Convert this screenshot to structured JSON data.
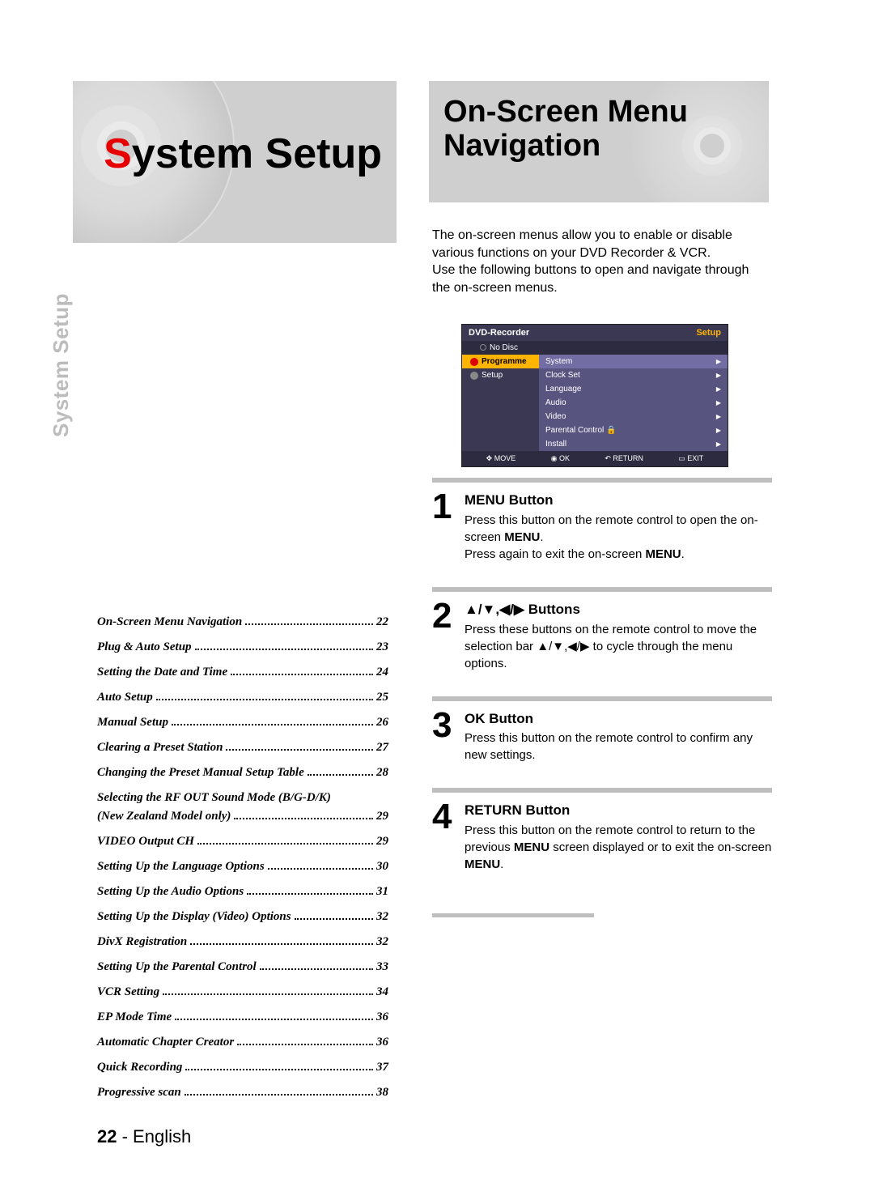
{
  "header": {
    "left_title_accent": "S",
    "left_title_rest": "ystem Setup",
    "right_title_line1": "On-Screen Menu",
    "right_title_line2": "Navigation"
  },
  "intro": {
    "p1": "The on-screen menus allow you to enable or disable various functions on your DVD Recorder & VCR.",
    "p2": "Use the following buttons to open and navigate through the on-screen menus."
  },
  "osd": {
    "device": "DVD-Recorder",
    "mode": "Setup",
    "status": "No Disc",
    "left_items": [
      "Programme",
      "Setup"
    ],
    "right_items": [
      "System",
      "Clock Set",
      "Language",
      "Audio",
      "Video",
      "Parental Control",
      "Install"
    ],
    "footer": [
      "MOVE",
      "OK",
      "RETURN",
      "EXIT"
    ]
  },
  "steps": [
    {
      "num": "1",
      "title": "MENU Button",
      "body_html": "Press this button on the remote control to open the on-screen <b>MENU</b>.<br>Press again to exit the on-screen <b>MENU</b>."
    },
    {
      "num": "2",
      "title": "▲/▼,◀/▶ Buttons",
      "body_html": "Press these buttons on the remote control to move the selection bar ▲/▼,◀/▶ to cycle through the menu options."
    },
    {
      "num": "3",
      "title": "OK Button",
      "body_html": "Press this button on the remote control to confirm any new settings."
    },
    {
      "num": "4",
      "title": "RETURN Button",
      "body_html": "Press this button on the remote control to return to the previous <b>MENU</b> screen displayed or to exit the on-screen <b>MENU</b>."
    }
  ],
  "side_label": {
    "accent": "S",
    "rest": "ystem Setup"
  },
  "toc": [
    {
      "title": "On-Screen Menu Navigation",
      "page": "22"
    },
    {
      "title": "Plug & Auto Setup",
      "page": "23"
    },
    {
      "title": "Setting the Date and Time",
      "page": "24"
    },
    {
      "title": "Auto Setup",
      "page": "25"
    },
    {
      "title": "Manual Setup",
      "page": "26"
    },
    {
      "title": "Clearing a Preset Station",
      "page": "27"
    },
    {
      "title": "Changing the Preset Manual Setup Table",
      "page": "28"
    },
    {
      "title": "Selecting the RF OUT Sound Mode (B/G-D/K)",
      "page": ""
    },
    {
      "title": "(New Zealand Model only)",
      "page": "29",
      "cont": true
    },
    {
      "title": "VIDEO Output CH",
      "page": "29"
    },
    {
      "title": "Setting Up the Language Options",
      "page": "30"
    },
    {
      "title": "Setting Up the Audio Options",
      "page": "31"
    },
    {
      "title": "Setting Up the Display (Video) Options",
      "page": "32"
    },
    {
      "title": "DivX Registration",
      "page": "32"
    },
    {
      "title": "Setting Up the Parental Control",
      "page": "33"
    },
    {
      "title": "VCR Setting",
      "page": "34"
    },
    {
      "title": "EP Mode Time",
      "page": "36"
    },
    {
      "title": "Automatic Chapter Creator",
      "page": "36"
    },
    {
      "title": "Quick Recording",
      "page": "37"
    },
    {
      "title": "Progressive scan",
      "page": "38"
    }
  ],
  "footer": {
    "page_num": "22",
    "sep": " - ",
    "lang": "English"
  }
}
